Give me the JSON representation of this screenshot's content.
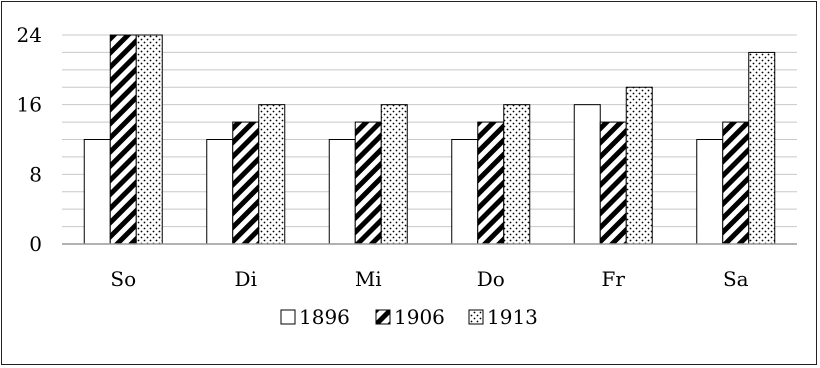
{
  "chart_data": {
    "type": "bar",
    "categories": [
      "So",
      "Di",
      "Mi",
      "Do",
      "Fr",
      "Sa"
    ],
    "series": [
      {
        "name": "1896",
        "values": [
          12,
          12,
          12,
          12,
          16,
          12
        ],
        "pattern": "solid-white"
      },
      {
        "name": "1906",
        "values": [
          24,
          14,
          14,
          14,
          14,
          14
        ],
        "pattern": "diagonal-hatch"
      },
      {
        "name": "1913",
        "values": [
          24,
          16,
          16,
          16,
          18,
          22
        ],
        "pattern": "dots"
      }
    ],
    "title": "",
    "xlabel": "",
    "ylabel": "",
    "ylim": [
      0,
      24
    ],
    "yticks": [
      0,
      8,
      16,
      24
    ],
    "minor_grid_step": 2,
    "grid": true,
    "legend_position": "bottom",
    "colors": {
      "stroke": "#000000",
      "fill": "#ffffff",
      "grid": "#c8c8c8"
    }
  }
}
